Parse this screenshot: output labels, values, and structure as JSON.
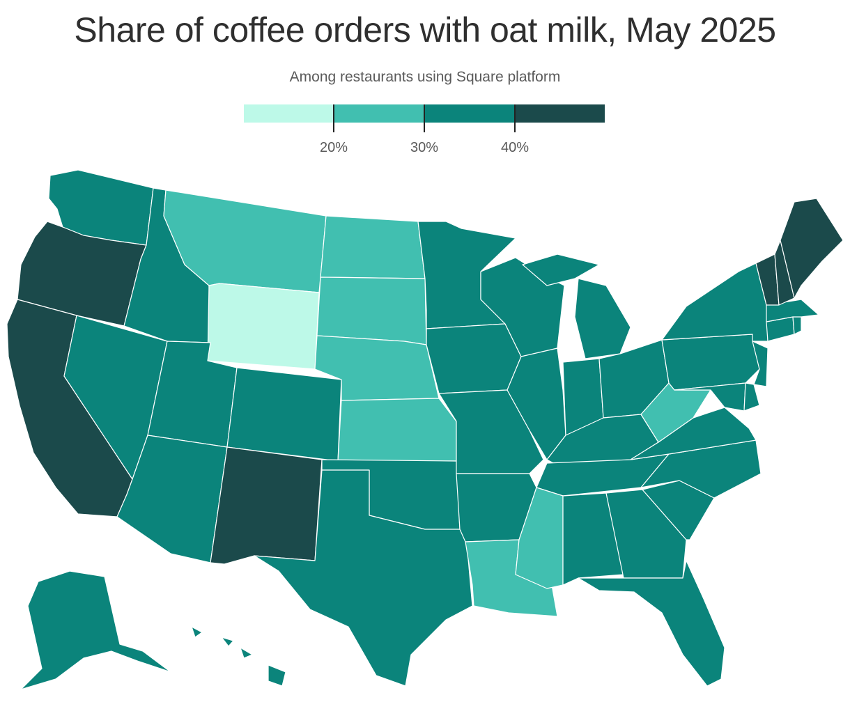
{
  "title": "Share of coffee orders with oat milk, May 2025",
  "subtitle": "Among restaurants using Square platform",
  "colors": {
    "bin_lt20": "#bdf9e8",
    "bin_20_30": "#41bfb0",
    "bin_30_40": "#0b847b",
    "bin_40plus": "#1b4a4b"
  },
  "legend": {
    "bins": [
      "bin_lt20",
      "bin_20_30",
      "bin_30_40",
      "bin_40plus"
    ],
    "ticks": [
      "20%",
      "30%",
      "40%"
    ]
  },
  "map_data": {
    "type": "choropleth",
    "region": "United States",
    "bins_by_state": {
      "bin_lt20": [
        "WY"
      ],
      "bin_20_30": [
        "MT",
        "ND",
        "SD",
        "NE",
        "KS",
        "WV",
        "MS",
        "LA"
      ],
      "bin_30_40": [
        "WA",
        "ID",
        "NV",
        "UT",
        "AZ",
        "CO",
        "TX",
        "OK",
        "MN",
        "IA",
        "MO",
        "AR",
        "WI",
        "IL",
        "MI",
        "IN",
        "OH",
        "KY",
        "TN",
        "AL",
        "GA",
        "FL",
        "SC",
        "NC",
        "VA",
        "MD",
        "DE",
        "NJ",
        "PA",
        "NY",
        "CT",
        "RI",
        "MA",
        "AK",
        "HI"
      ],
      "bin_40plus": [
        "OR",
        "CA",
        "NM",
        "VT",
        "NH",
        "ME"
      ]
    }
  }
}
